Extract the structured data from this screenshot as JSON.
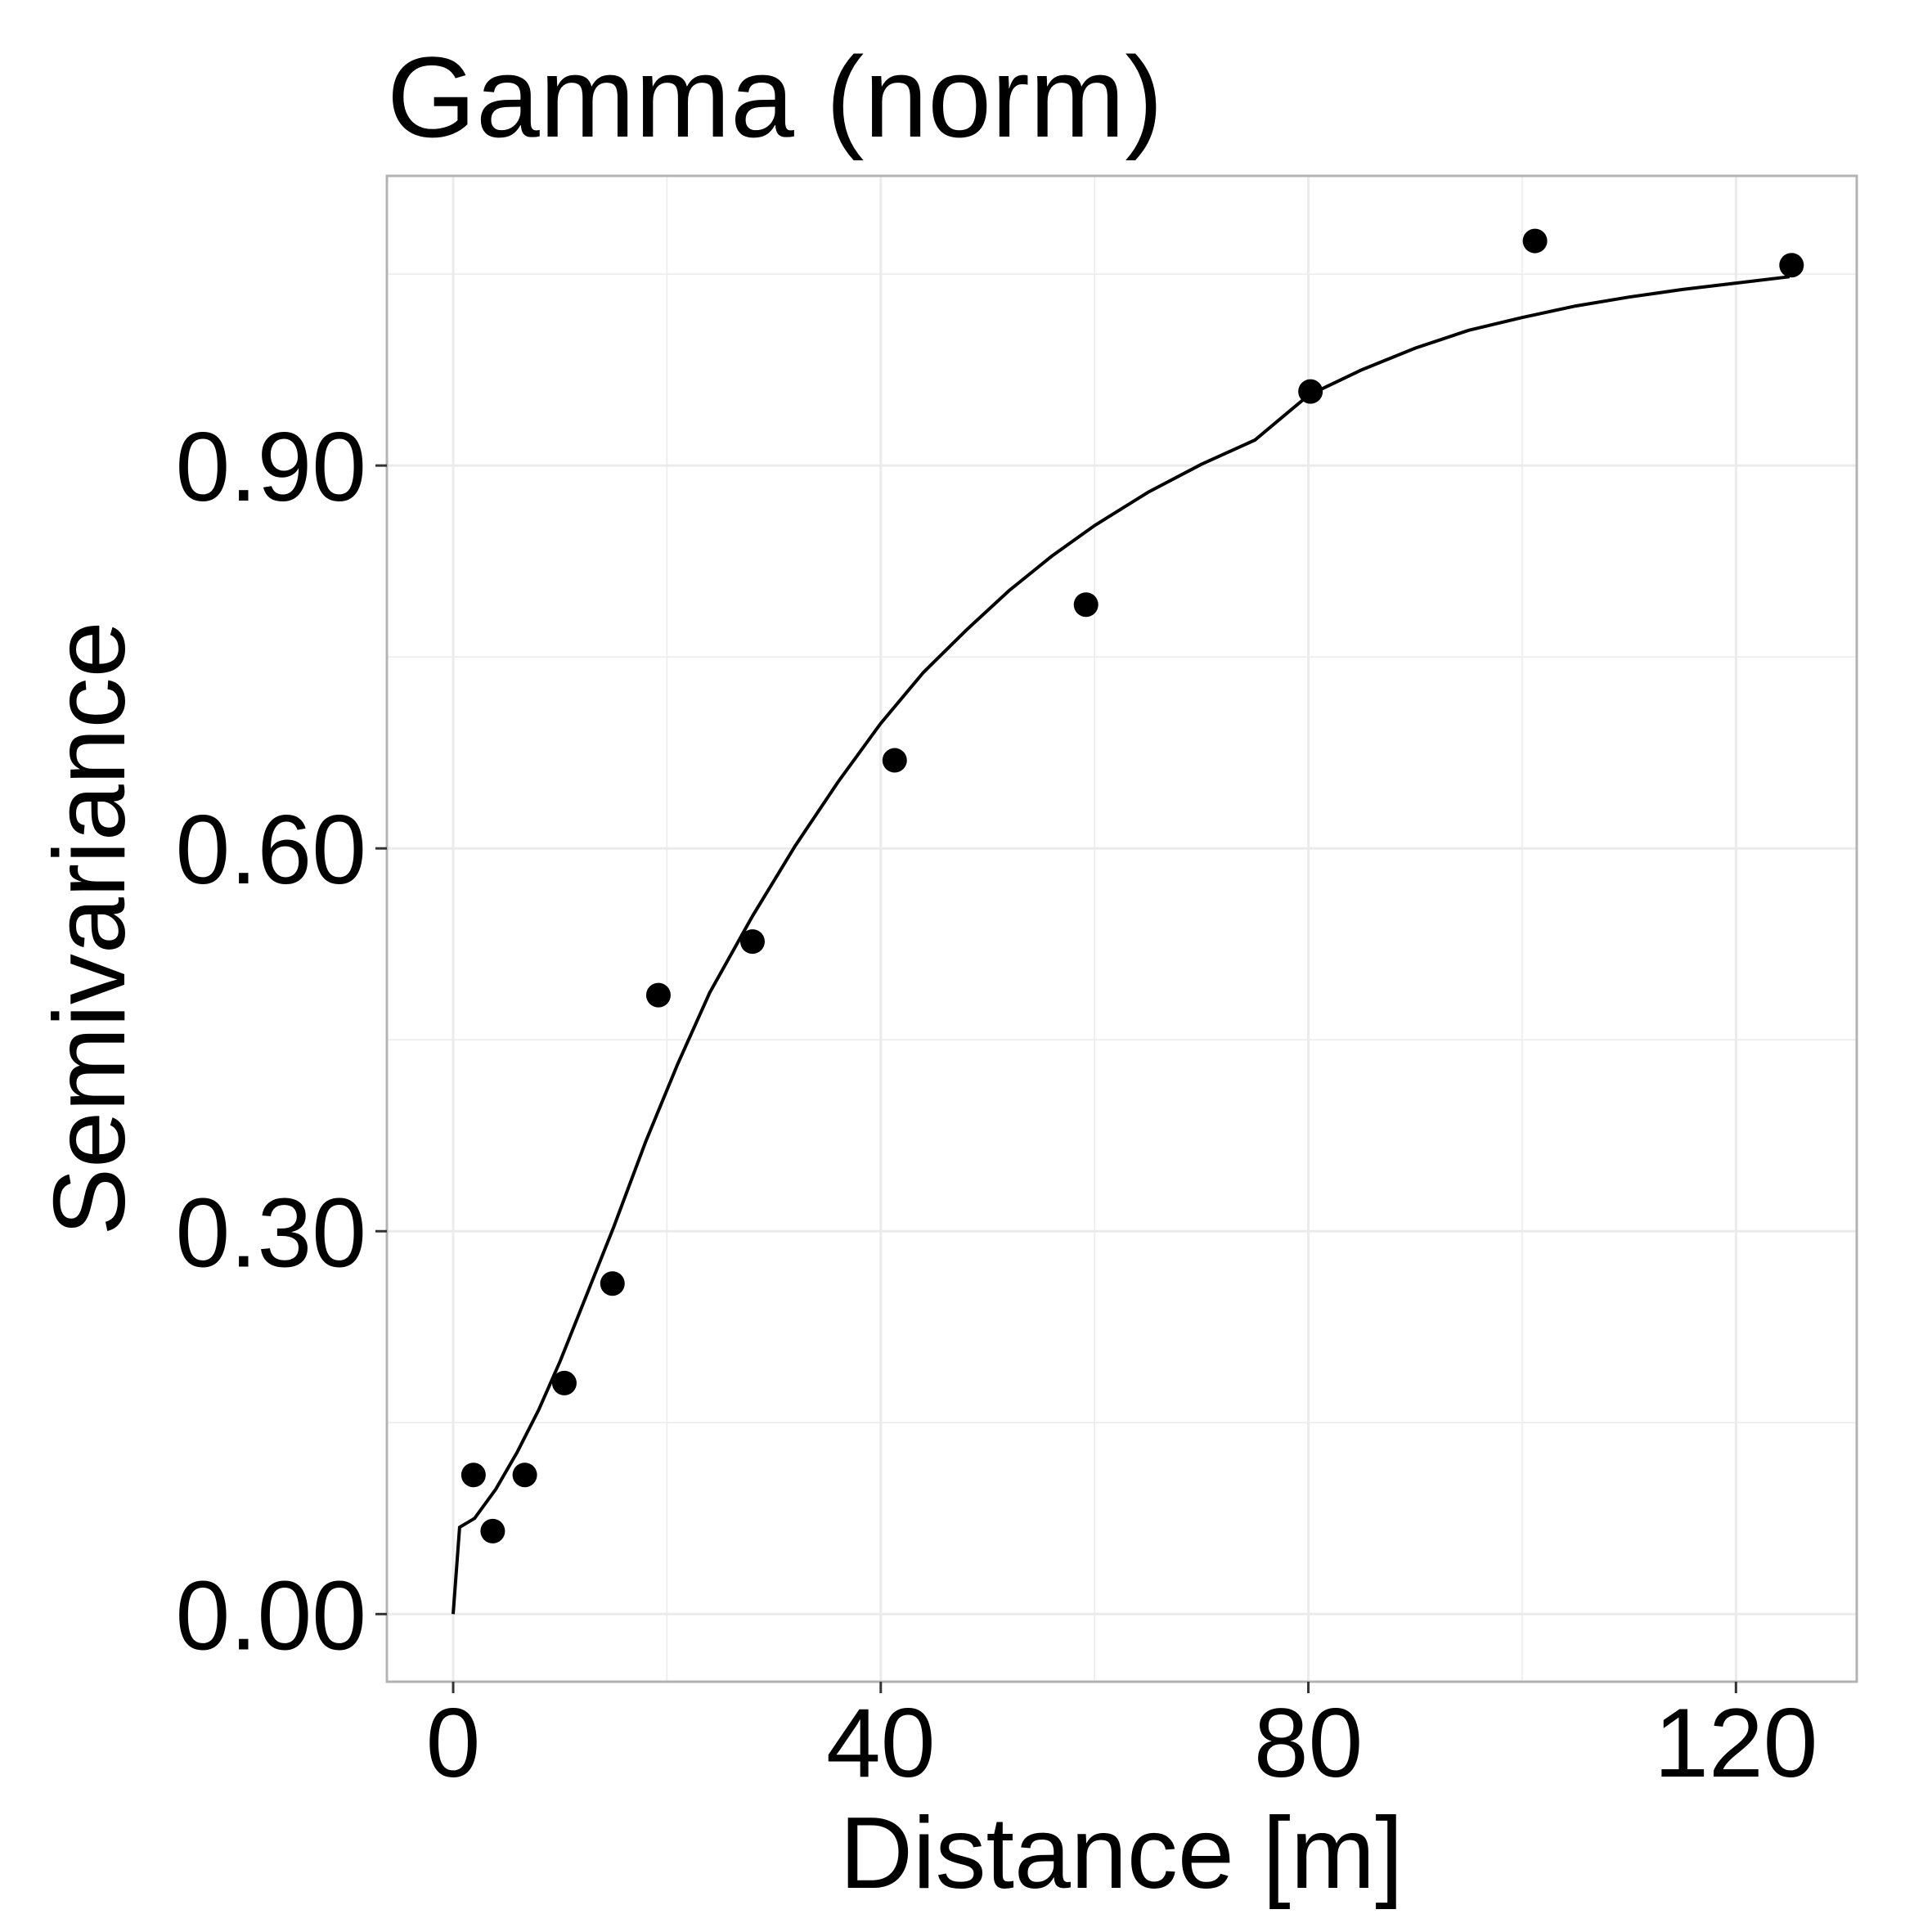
{
  "chart_data": {
    "type": "scatter",
    "title": "Gamma (norm)",
    "xlabel": "Distance [m]",
    "ylabel": "Semivariance",
    "xlim": [
      -6.2,
      131.3
    ],
    "ylim": [
      -0.053,
      1.127
    ],
    "x_ticks": [
      0,
      40,
      80,
      120
    ],
    "x_tick_labels": [
      "0",
      "40",
      "80",
      "120"
    ],
    "y_ticks": [
      0.0,
      0.3,
      0.6,
      0.9
    ],
    "y_tick_labels": [
      "0.00",
      "0.30",
      "0.60",
      "0.90"
    ],
    "grid": true,
    "legend": "none",
    "points": [
      {
        "x": 1.9,
        "y": 0.109
      },
      {
        "x": 3.7,
        "y": 0.065
      },
      {
        "x": 6.7,
        "y": 0.109
      },
      {
        "x": 10.4,
        "y": 0.181
      },
      {
        "x": 14.9,
        "y": 0.259
      },
      {
        "x": 19.2,
        "y": 0.485
      },
      {
        "x": 28.0,
        "y": 0.527
      },
      {
        "x": 41.3,
        "y": 0.669
      },
      {
        "x": 59.2,
        "y": 0.791
      },
      {
        "x": 80.2,
        "y": 0.958
      },
      {
        "x": 101.2,
        "y": 1.076
      },
      {
        "x": 125.2,
        "y": 1.057
      }
    ],
    "model_line": {
      "x": [
        0,
        0.6,
        2,
        4,
        6,
        8,
        10,
        12,
        15,
        18,
        21,
        24,
        28,
        32,
        36,
        40,
        44,
        48,
        52,
        56,
        60,
        65,
        70,
        75,
        80,
        85,
        90,
        95,
        100,
        105,
        110,
        115,
        120,
        125
      ],
      "y": [
        0.0,
        0.068,
        0.075,
        0.098,
        0.127,
        0.16,
        0.198,
        0.24,
        0.303,
        0.37,
        0.431,
        0.487,
        0.547,
        0.602,
        0.652,
        0.698,
        0.738,
        0.771,
        0.802,
        0.829,
        0.853,
        0.879,
        0.901,
        0.92,
        0.955,
        0.975,
        0.992,
        1.006,
        1.016,
        1.025,
        1.032,
        1.038,
        1.043,
        1.048
      ]
    },
    "colors": {
      "points": "#000000",
      "line": "#000000",
      "grid": "#ebebeb",
      "panel_border": "#b3b3b3"
    }
  }
}
